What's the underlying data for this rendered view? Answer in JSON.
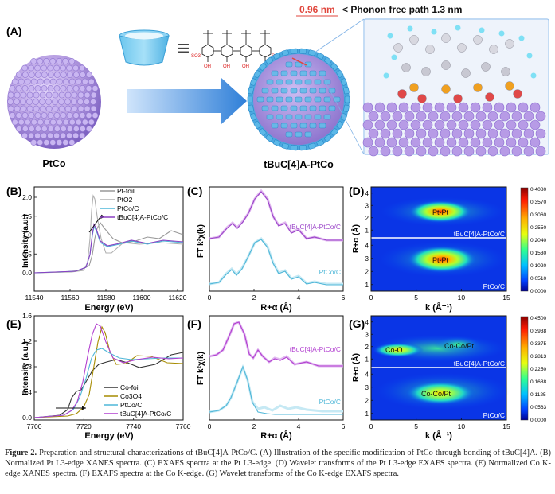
{
  "panelA": {
    "label": "(A)",
    "phonon_value": "0.96 nm",
    "phonon_text": "< Phonon free path 1.3 nm",
    "equiv": "≡",
    "chem_labels": [
      "SO3",
      "OH",
      "OH",
      "OH",
      "OH",
      "SO3"
    ],
    "left_caption": "PtCo",
    "right_caption": "tBuC[4]A-PtCo",
    "colors": {
      "sphere": "#b49be0",
      "shell": "#4aa8e0",
      "arrow": "#2f7fd8",
      "phonon": "#e0463c"
    }
  },
  "panelB": {
    "label": "(B)",
    "ylabel": "Intensity (a.u.)",
    "xlabel": "Energy (eV)",
    "xticks": [
      "11540",
      "11560",
      "11580",
      "11600",
      "11620"
    ],
    "yticks": [
      "0.0",
      "0.5",
      "1.0",
      "1.5",
      "2.0"
    ],
    "legend": [
      "Pt-foil",
      "PtO2",
      "PtCo/C",
      "tBuC[4]A-PtCo/C"
    ]
  },
  "panelC": {
    "label": "(C)",
    "ylabel": "FT k²χ(k)",
    "xlabel": "R+α (Å)",
    "xticks": [
      "0",
      "2",
      "4",
      "6"
    ],
    "series": [
      "tBuC[4]A-PtCo/C",
      "PtCo/C"
    ]
  },
  "panelD": {
    "label": "(D)",
    "ylabel": "R+α (Å)",
    "xlabel": "k (Å⁻¹)",
    "xticks": [
      "0",
      "5",
      "10",
      "15"
    ],
    "yticks": [
      "1",
      "2",
      "3",
      "4"
    ],
    "top_label": "tBuC[4]A-PtCo/C",
    "bottom_label": "PtCo/C",
    "peak_label": "Pt-Pt",
    "colorbar": [
      "0.4080",
      "0.3570",
      "0.3060",
      "0.2550",
      "0.2040",
      "0.1530",
      "0.1020",
      "0.0510",
      "0.0000"
    ]
  },
  "panelE": {
    "label": "(E)",
    "ylabel": "Intensity (a.u.)",
    "xlabel": "Energy (eV)",
    "xticks": [
      "7700",
      "7720",
      "7740",
      "7760"
    ],
    "yticks": [
      "0.0",
      "0.4",
      "0.8",
      "1.2",
      "1.6"
    ],
    "legend": [
      "Co-foil",
      "Co3O4",
      "PtCo/C",
      "tBuC[4]A-PtCo/C"
    ]
  },
  "panelF": {
    "label": "(F)",
    "ylabel": "FT k²χ(k)",
    "xlabel": "R+α (Å)",
    "xticks": [
      "0",
      "2",
      "4",
      "6"
    ],
    "series": [
      "tBuC[4]A-PtCo/C",
      "PtCo/C"
    ]
  },
  "panelG": {
    "label": "(G)",
    "ylabel": "R+α (Å)",
    "xlabel": "k (Å⁻¹)",
    "xticks": [
      "0",
      "5",
      "10",
      "15"
    ],
    "yticks": [
      "1",
      "2",
      "3",
      "4"
    ],
    "top_label": "tBuC[4]A-PtCo/C",
    "bottom_label": "PtCo/C",
    "peak_co_o": "Co-O",
    "peak_co_copt": "Co-Co/Pt",
    "colorbar": [
      "0.4500",
      "0.3938",
      "0.3375",
      "0.2813",
      "0.2250",
      "0.1688",
      "0.1125",
      "0.0563",
      "0.0000"
    ]
  },
  "caption": {
    "lead": "Figure 2.",
    "text": "Preparation and structural characterizations of tBuC[4]A-PtCo/C. (A) Illustration of the specific modification of PtCo through bonding of tBuC[4]A. (B) Normalized Pt L3-edge XANES spectra. (C) EXAFS spectra at the Pt L3-edge. (D) Wavelet transforms of the Pt L3-edge EXAFS spectra. (E) Normalized Co K-edge XANES spectra. (F) EXAFS spectra at the Co K-edge. (G) Wavelet transforms of the Co K-edge EXAFS spectra."
  }
}
